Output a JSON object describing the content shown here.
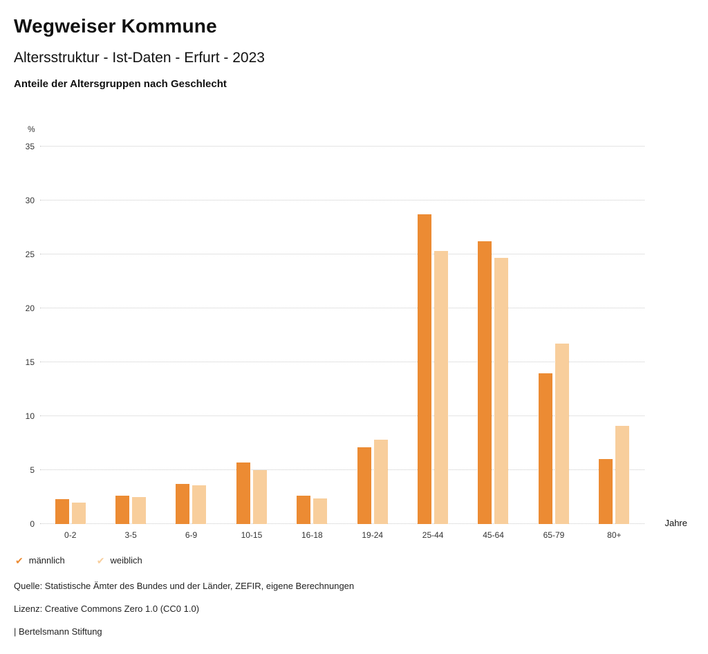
{
  "header": {
    "title": "Wegweiser Kommune",
    "subtitle": "Altersstruktur - Ist-Daten - Erfurt - 2023",
    "chart_heading": "Anteile der Altersgruppen nach Geschlecht"
  },
  "chart_data": {
    "type": "bar",
    "title": "Anteile der Altersgruppen nach Geschlecht",
    "categories": [
      "0-2",
      "3-5",
      "6-9",
      "10-15",
      "16-18",
      "19-24",
      "25-44",
      "45-64",
      "65-79",
      "80+"
    ],
    "series": [
      {
        "name": "männlich",
        "color": "#EC8B33",
        "values": [
          2.3,
          2.6,
          3.7,
          5.7,
          2.6,
          7.1,
          28.7,
          26.2,
          14.0,
          6.0
        ]
      },
      {
        "name": "weiblich",
        "color": "#F8CE9C",
        "values": [
          2.0,
          2.5,
          3.6,
          5.0,
          2.4,
          7.8,
          25.3,
          24.7,
          16.7,
          9.1
        ]
      }
    ],
    "ylabel": "%",
    "xlabel": "Jahre",
    "ylim": [
      0,
      35
    ],
    "yticks": [
      0,
      5,
      10,
      15,
      20,
      25,
      30,
      35
    ],
    "grid": true,
    "legend_position": "bottom"
  },
  "footer": {
    "source": "Quelle: Statistische Ämter des Bundes und der Länder, ZEFIR, eigene Berechnungen",
    "license": "Lizenz: Creative Commons Zero 1.0 (CC0 1.0)",
    "attribution": "| Bertelsmann Stiftung"
  }
}
